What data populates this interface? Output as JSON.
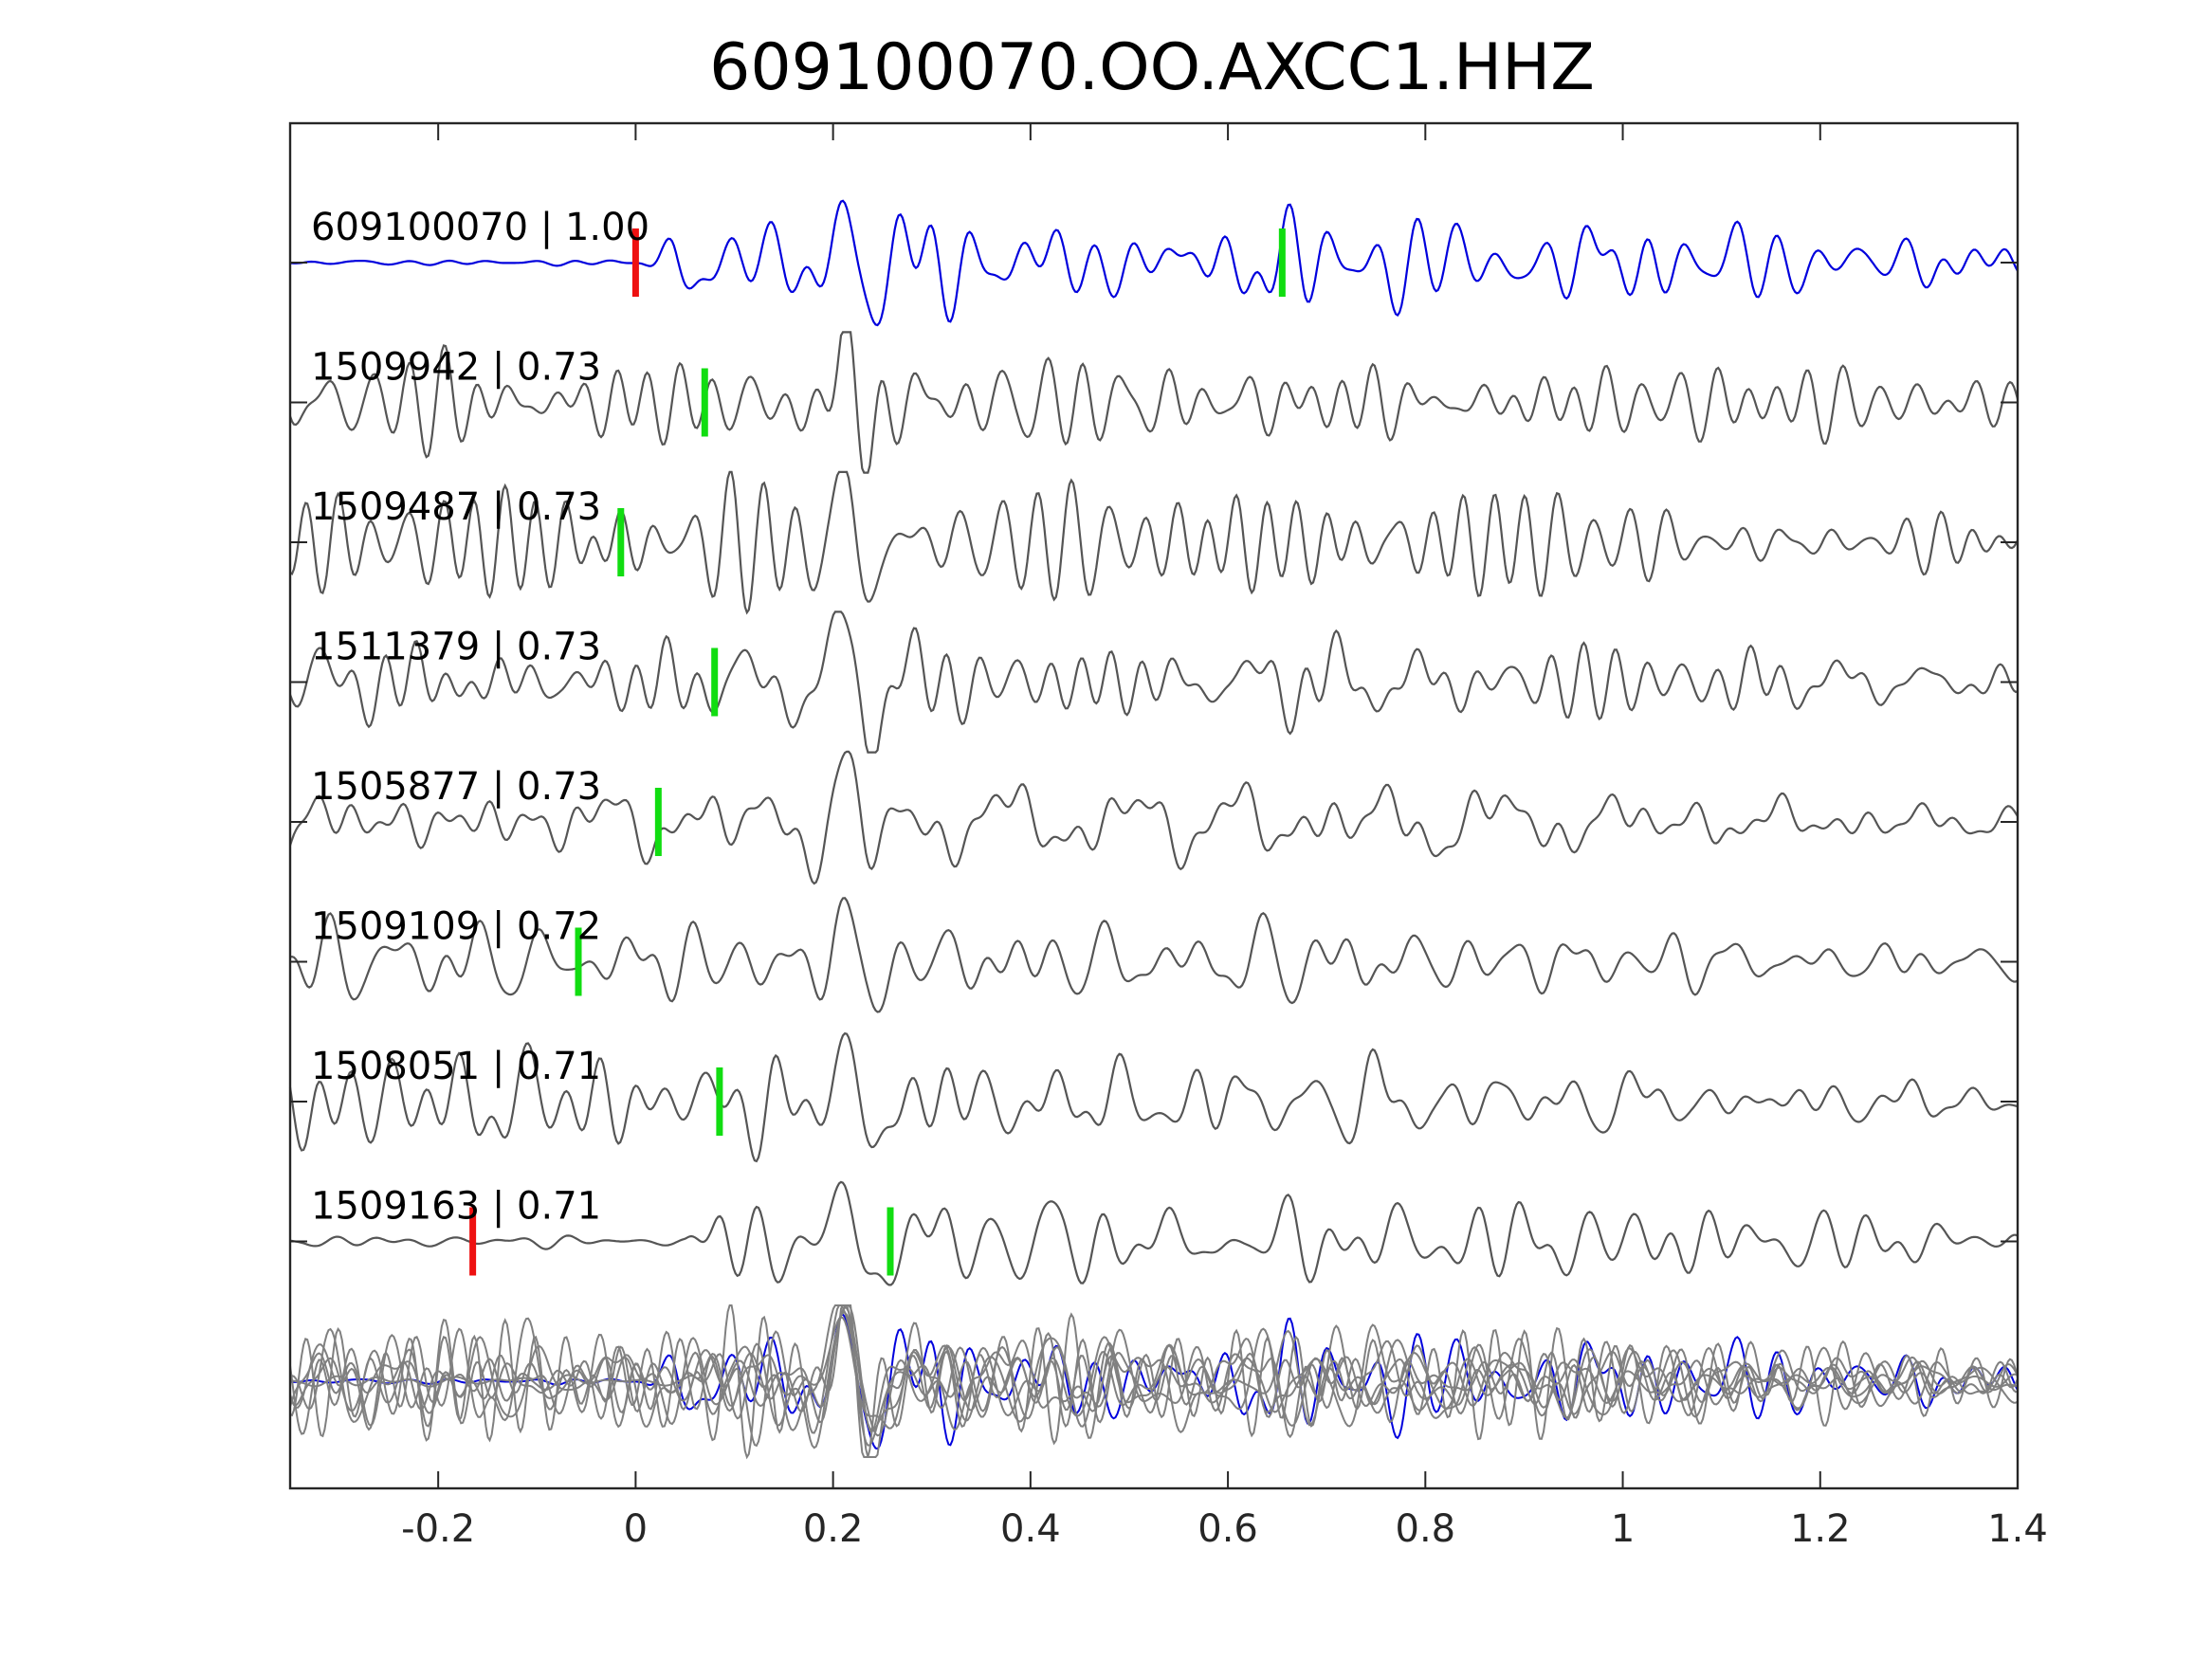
{
  "chart_data": {
    "type": "line",
    "title": "609100070.OO.AXCC1.HHZ",
    "xlabel": "",
    "ylabel": "",
    "xlim": [
      -0.35,
      1.4
    ],
    "xticks": [
      -0.2,
      0,
      0.2,
      0.4,
      0.6,
      0.8,
      1,
      1.2,
      1.4
    ],
    "xtick_labels": [
      "-0.2",
      "0",
      "0.2",
      "0.4",
      "0.6",
      "0.8",
      "1",
      "1.2",
      "1.4"
    ],
    "grid": false,
    "colors": {
      "template": "#0000dd",
      "match": "#555555",
      "overlay": "#808080",
      "pick_red": "#ee1111",
      "pick_green": "#11dd11",
      "axes": "#262626"
    },
    "traces": [
      {
        "id": "609100070",
        "cc": "1.00",
        "label": "609100070 | 1.00",
        "color": "#0000dd",
        "red_pick": 0.0,
        "green_pick": 0.655,
        "seed": 11,
        "onset": 0.0,
        "pre_amp": 0.04
      },
      {
        "id": "1509942",
        "cc": "0.73",
        "label": "1509942 | 0.73",
        "color": "#555555",
        "red_pick": null,
        "green_pick": 0.07,
        "seed": 23,
        "onset": -0.35,
        "pre_amp": 0.7
      },
      {
        "id": "1509487",
        "cc": "0.73",
        "label": "1509487 | 0.73",
        "color": "#555555",
        "red_pick": null,
        "green_pick": -0.015,
        "seed": 37,
        "onset": -0.35,
        "pre_amp": 0.7
      },
      {
        "id": "1511379",
        "cc": "0.73",
        "label": "1511379 | 0.73",
        "color": "#555555",
        "red_pick": null,
        "green_pick": 0.08,
        "seed": 41,
        "onset": -0.35,
        "pre_amp": 0.7
      },
      {
        "id": "1505877",
        "cc": "0.73",
        "label": "1505877 | 0.73",
        "color": "#555555",
        "red_pick": null,
        "green_pick": 0.023,
        "seed": 53,
        "onset": -0.35,
        "pre_amp": 0.7
      },
      {
        "id": "1509109",
        "cc": "0.72",
        "label": "1509109 | 0.72",
        "color": "#555555",
        "red_pick": null,
        "green_pick": -0.058,
        "seed": 67,
        "onset": -0.35,
        "pre_amp": 0.7
      },
      {
        "id": "1508051",
        "cc": "0.71",
        "label": "1508051 | 0.71",
        "color": "#555555",
        "red_pick": null,
        "green_pick": 0.085,
        "seed": 79,
        "onset": -0.35,
        "pre_amp": 0.7
      },
      {
        "id": "1509163",
        "cc": "0.71",
        "label": "1509163 | 0.71",
        "color": "#555555",
        "red_pick": -0.165,
        "green_pick": 0.258,
        "seed": 83,
        "onset": 0.05,
        "pre_amp": 0.08
      }
    ]
  }
}
